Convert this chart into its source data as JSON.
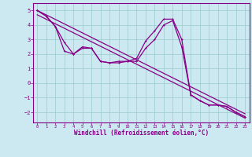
{
  "xlabel": "Windchill (Refroidissement éolien,°C)",
  "bg_color": "#cce8f0",
  "line_color": "#880088",
  "grid_color": "#99cccc",
  "xlim": [
    -0.5,
    23.5
  ],
  "ylim": [
    -2.7,
    5.5
  ],
  "yticks": [
    -2,
    -1,
    0,
    1,
    2,
    3,
    4,
    5
  ],
  "xticks": [
    0,
    1,
    2,
    3,
    4,
    5,
    6,
    7,
    8,
    9,
    10,
    11,
    12,
    13,
    14,
    15,
    16,
    17,
    18,
    19,
    20,
    21,
    22,
    23
  ],
  "line1_x": [
    0,
    1,
    2,
    3,
    4,
    5,
    6,
    7,
    8,
    9,
    10,
    11,
    12,
    13,
    14,
    15,
    16,
    17,
    18,
    19,
    20,
    21,
    22,
    23
  ],
  "line1_y": [
    5.0,
    4.6,
    3.9,
    2.8,
    2.0,
    2.5,
    2.4,
    1.5,
    1.4,
    1.5,
    1.5,
    1.7,
    2.9,
    3.6,
    4.4,
    4.4,
    3.0,
    -0.8,
    -1.2,
    -1.5,
    -1.5,
    -1.6,
    -2.0,
    -2.3
  ],
  "line2_x": [
    0,
    1,
    2,
    3,
    4,
    5,
    6,
    7,
    8,
    9,
    10,
    11,
    12,
    13,
    14,
    15,
    16,
    17,
    18,
    19,
    20,
    21,
    22,
    23
  ],
  "line2_y": [
    5.0,
    4.6,
    3.9,
    2.2,
    2.0,
    2.4,
    2.4,
    1.5,
    1.4,
    1.4,
    1.5,
    1.5,
    2.4,
    3.0,
    4.0,
    4.3,
    2.5,
    -0.8,
    -1.2,
    -1.5,
    -1.5,
    -1.6,
    -2.0,
    -2.3
  ],
  "line3_x": [
    0,
    23
  ],
  "line3_y": [
    5.0,
    -2.1
  ],
  "line4_x": [
    0,
    23
  ],
  "line4_y": [
    4.7,
    -2.4
  ]
}
